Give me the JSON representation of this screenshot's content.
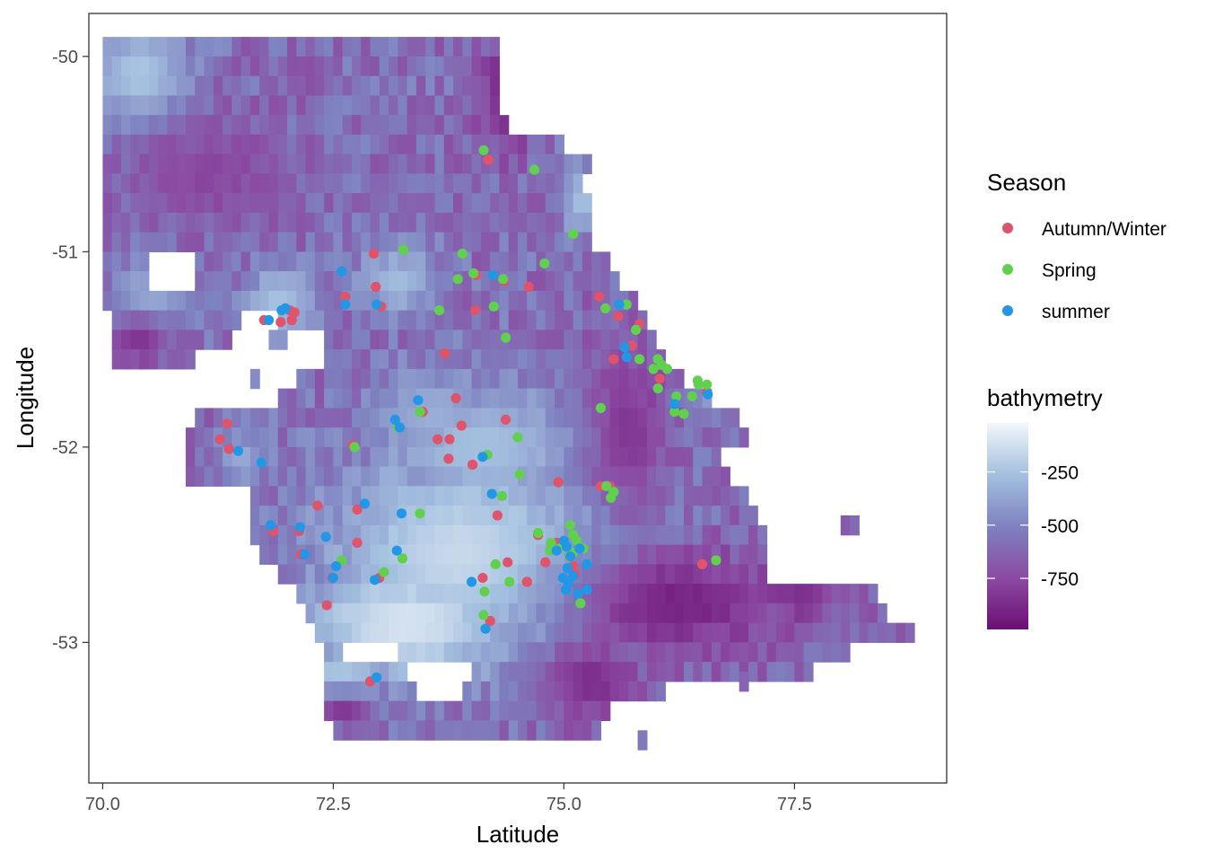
{
  "chart_data": {
    "type": "heatmap",
    "xlabel": "Latitude",
    "ylabel": "Longitude",
    "xlim": [
      69.85,
      79.15
    ],
    "ylim": [
      -53.72,
      -49.78
    ],
    "x_ticks": [
      70.0,
      72.5,
      75.0,
      77.5
    ],
    "x_tick_labels": [
      "70.0",
      "72.5",
      "75.0",
      "77.5"
    ],
    "y_ticks": [
      -50,
      -51,
      -52,
      -53
    ],
    "y_tick_labels": [
      "-50",
      "-51",
      "-52",
      "-53"
    ],
    "grid": false,
    "legend_placement": "right",
    "color_legend": {
      "title": "bathymetry",
      "breaks": [
        -250,
        -500,
        -750
      ],
      "break_labels": [
        "-250",
        "-500",
        "-750"
      ],
      "range": [
        -990,
        -20
      ],
      "colors_low_to_high": [
        "#6d0e74",
        "#8b4aa3",
        "#7e82c0",
        "#a4c0df",
        "#f2f6fa"
      ]
    },
    "season_legend": {
      "title": "Season",
      "entries": [
        {
          "label": "Autumn/Winter",
          "color": "#df536b"
        },
        {
          "label": "Spring",
          "color": "#61d04f"
        },
        {
          "label": "summer",
          "color": "#2297e6"
        }
      ]
    },
    "heat_cell_size": [
      0.1,
      0.093
    ],
    "heat_region_rows": [
      {
        "y": -49.95,
        "x0": 70.05,
        "x1": 74.25
      },
      {
        "y": -50.05,
        "x0": 70.05,
        "x1": 74.25
      },
      {
        "y": -50.15,
        "x0": 70.05,
        "x1": 74.25
      },
      {
        "y": -50.25,
        "x0": 70.05,
        "x1": 74.25
      },
      {
        "y": -50.35,
        "x0": 70.05,
        "x1": 74.35
      },
      {
        "y": -50.45,
        "x0": 70.05,
        "x1": 74.95
      },
      {
        "y": -50.55,
        "x0": 70.05,
        "x1": 75.25
      },
      {
        "y": -50.65,
        "x0": 70.05,
        "x1": 75.15
      },
      {
        "y": -50.75,
        "x0": 70.05,
        "x1": 75.25
      },
      {
        "y": -50.85,
        "x0": 70.05,
        "x1": 75.25
      },
      {
        "y": -50.95,
        "x0": 70.05,
        "x1": 75.25
      },
      {
        "y": -51.05,
        "x0": 70.05,
        "x1": 75.45
      },
      {
        "y": -51.15,
        "x0": 70.05,
        "x1": 75.55
      },
      {
        "y": -51.25,
        "x0": 70.05,
        "x1": 75.75
      },
      {
        "y": -51.35,
        "x0": 70.15,
        "x1": 75.85
      },
      {
        "y": -51.45,
        "x0": 70.15,
        "x1": 75.95
      },
      {
        "y": -51.55,
        "x0": 70.15,
        "x1": 76.05
      },
      {
        "y": -51.65,
        "x0": 71.05,
        "x1": 76.25
      },
      {
        "y": -51.75,
        "x0": 71.05,
        "x1": 76.55
      },
      {
        "y": -51.85,
        "x0": 71.05,
        "x1": 76.85
      },
      {
        "y": -51.95,
        "x0": 70.95,
        "x1": 76.95
      },
      {
        "y": -52.05,
        "x0": 70.95,
        "x1": 76.65
      },
      {
        "y": -52.15,
        "x0": 70.95,
        "x1": 76.75
      },
      {
        "y": -52.25,
        "x0": 71.65,
        "x1": 76.95
      },
      {
        "y": -52.35,
        "x0": 71.65,
        "x1": 77.05
      },
      {
        "y": -52.45,
        "x0": 71.65,
        "x1": 77.15
      },
      {
        "y": -52.55,
        "x0": 71.75,
        "x1": 77.15
      },
      {
        "y": -52.65,
        "x0": 71.95,
        "x1": 77.15
      },
      {
        "y": -52.75,
        "x0": 72.15,
        "x1": 78.35
      },
      {
        "y": -52.85,
        "x0": 72.25,
        "x1": 78.45
      },
      {
        "y": -52.95,
        "x0": 72.35,
        "x1": 78.75
      },
      {
        "y": -53.05,
        "x0": 72.45,
        "x1": 78.05
      },
      {
        "y": -53.15,
        "x0": 72.45,
        "x1": 77.65
      },
      {
        "y": -53.25,
        "x0": 72.45,
        "x1": 76.05
      },
      {
        "y": -53.35,
        "x0": 72.45,
        "x1": 75.45
      },
      {
        "y": -53.45,
        "x0": 72.55,
        "x1": 75.35
      }
    ],
    "heat_empty_cells": [
      {
        "x0": 70.55,
        "x1": 70.95,
        "y": -51.05
      },
      {
        "x0": 70.55,
        "x1": 70.95,
        "y": -51.15
      },
      {
        "x0": 71.55,
        "x1": 71.85,
        "y": -51.35
      },
      {
        "x0": 71.45,
        "x1": 71.75,
        "y": -51.45
      },
      {
        "x0": 72.05,
        "x1": 72.35,
        "y": -51.45
      },
      {
        "x0": 71.05,
        "x1": 71.95,
        "y": -51.55
      },
      {
        "x0": 72.05,
        "x1": 72.35,
        "y": -51.55
      },
      {
        "x0": 71.05,
        "x1": 71.55,
        "y": -51.65
      },
      {
        "x0": 71.75,
        "x1": 72.05,
        "y": -51.65
      },
      {
        "x0": 71.05,
        "x1": 71.85,
        "y": -51.75
      },
      {
        "x0": 71.05,
        "x1": 71.35,
        "y": -52.25
      },
      {
        "x0": 72.65,
        "x1": 73.15,
        "y": -53.05
      },
      {
        "x0": 73.35,
        "x1": 73.95,
        "y": -53.15
      },
      {
        "x0": 73.45,
        "x1": 73.85,
        "y": -53.25
      }
    ],
    "heat_isolated_cells": [
      {
        "x": 75.85,
        "y": -53.5
      },
      {
        "x": 78.05,
        "y": -52.4
      },
      {
        "x": 78.15,
        "y": -52.4
      },
      {
        "x": 76.95,
        "y": -53.2
      }
    ],
    "shallow_zones": [
      {
        "cx": 73.9,
        "cy": -52.55,
        "rx": 1.7,
        "ry": 0.6,
        "value": -150
      },
      {
        "cx": 73.3,
        "cy": -52.9,
        "rx": 1.4,
        "ry": 0.35,
        "value": -100
      },
      {
        "cx": 72.6,
        "cy": -53.2,
        "rx": 0.5,
        "ry": 0.25,
        "value": -200
      },
      {
        "cx": 74.1,
        "cy": -52.0,
        "rx": 1.3,
        "ry": 0.35,
        "value": -260
      },
      {
        "cx": 73.6,
        "cy": -51.85,
        "rx": 0.8,
        "ry": 0.3,
        "value": -330
      },
      {
        "cx": 73.2,
        "cy": -51.15,
        "rx": 0.5,
        "ry": 0.2,
        "value": -280
      },
      {
        "cx": 71.9,
        "cy": -51.25,
        "rx": 0.4,
        "ry": 0.2,
        "value": -250
      },
      {
        "cx": 70.5,
        "cy": -51.25,
        "rx": 0.45,
        "ry": 0.25,
        "value": -320
      },
      {
        "cx": 70.4,
        "cy": -50.1,
        "rx": 0.6,
        "ry": 0.3,
        "value": -230
      },
      {
        "cx": 75.2,
        "cy": -50.75,
        "rx": 0.25,
        "ry": 0.2,
        "value": -260
      },
      {
        "cx": 77.9,
        "cy": -52.8,
        "rx": 0.2,
        "ry": 0.2,
        "value": -350
      },
      {
        "cx": 76.6,
        "cy": -51.75,
        "rx": 0.3,
        "ry": 0.15,
        "value": -400
      },
      {
        "cx": 71.5,
        "cy": -52.05,
        "rx": 0.3,
        "ry": 0.15,
        "value": -350
      }
    ],
    "deep_zones": [
      {
        "cx": 76.2,
        "cy": -52.8,
        "rx": 1.2,
        "ry": 0.3,
        "value": -950
      },
      {
        "cx": 74.4,
        "cy": -50.2,
        "rx": 0.35,
        "ry": 0.3,
        "value": -950
      },
      {
        "cx": 75.3,
        "cy": -53.2,
        "rx": 0.6,
        "ry": 0.25,
        "value": -900
      },
      {
        "cx": 77.6,
        "cy": -52.7,
        "rx": 0.6,
        "ry": 0.3,
        "value": -900
      },
      {
        "cx": 70.4,
        "cy": -51.45,
        "rx": 0.4,
        "ry": 0.15,
        "value": -880
      },
      {
        "cx": 72.6,
        "cy": -53.35,
        "rx": 0.4,
        "ry": 0.12,
        "value": -880
      },
      {
        "cx": 75.7,
        "cy": -51.9,
        "rx": 0.5,
        "ry": 0.5,
        "value": -850
      },
      {
        "cx": 71.1,
        "cy": -50.6,
        "rx": 1.0,
        "ry": 0.3,
        "value": -780
      }
    ],
    "series": [
      {
        "name": "Autumn/Winter",
        "color": "#df536b",
        "points": [
          [
            74.18,
            -50.53
          ],
          [
            72.94,
            -51.01
          ],
          [
            74.05,
            -51.12
          ],
          [
            74.35,
            -51.15
          ],
          [
            74.62,
            -51.18
          ],
          [
            72.96,
            -51.18
          ],
          [
            72.63,
            -51.23
          ],
          [
            73.02,
            -51.28
          ],
          [
            72.03,
            -51.3
          ],
          [
            72.08,
            -51.31
          ],
          [
            71.75,
            -51.35
          ],
          [
            71.93,
            -51.36
          ],
          [
            72.05,
            -51.35
          ],
          [
            74.04,
            -51.3
          ],
          [
            75.38,
            -51.23
          ],
          [
            75.74,
            -51.48
          ],
          [
            75.82,
            -51.37
          ],
          [
            75.54,
            -51.55
          ],
          [
            75.59,
            -51.33
          ],
          [
            73.71,
            -51.52
          ],
          [
            76.04,
            -51.65
          ],
          [
            73.83,
            -51.75
          ],
          [
            73.47,
            -51.82
          ],
          [
            71.35,
            -51.88
          ],
          [
            74.37,
            -51.86
          ],
          [
            73.89,
            -51.89
          ],
          [
            71.27,
            -51.96
          ],
          [
            72.71,
            -51.99
          ],
          [
            73.63,
            -51.96
          ],
          [
            73.76,
            -51.96
          ],
          [
            71.37,
            -52.01
          ],
          [
            73.75,
            -52.06
          ],
          [
            74.01,
            -52.09
          ],
          [
            74.94,
            -52.18
          ],
          [
            72.33,
            -52.3
          ],
          [
            74.28,
            -52.35
          ],
          [
            72.76,
            -52.32
          ],
          [
            71.85,
            -52.43
          ],
          [
            72.13,
            -52.43
          ],
          [
            72.76,
            -52.49
          ],
          [
            74.93,
            -52.49
          ],
          [
            74.72,
            -52.45
          ],
          [
            72.15,
            -52.55
          ],
          [
            72.43,
            -52.81
          ],
          [
            72.49,
            -52.67
          ],
          [
            74.39,
            -52.59
          ],
          [
            73.0,
            -52.67
          ],
          [
            74.12,
            -52.67
          ],
          [
            74.6,
            -52.69
          ],
          [
            74.8,
            -52.59
          ],
          [
            75.1,
            -52.61
          ],
          [
            74.2,
            -52.89
          ],
          [
            72.9,
            -53.2
          ],
          [
            75.4,
            -52.2
          ],
          [
            76.5,
            -52.6
          ],
          [
            76.55,
            -51.72
          ],
          [
            75.5,
            -52.2
          ],
          [
            75.12,
            -52.65
          ]
        ]
      },
      {
        "name": "Spring",
        "color": "#61d04f",
        "points": [
          [
            74.13,
            -50.48
          ],
          [
            74.68,
            -50.58
          ],
          [
            75.1,
            -50.91
          ],
          [
            73.26,
            -50.99
          ],
          [
            73.9,
            -51.01
          ],
          [
            74.79,
            -51.06
          ],
          [
            74.02,
            -51.11
          ],
          [
            74.34,
            -51.14
          ],
          [
            73.85,
            -51.14
          ],
          [
            75.45,
            -51.29
          ],
          [
            75.68,
            -51.27
          ],
          [
            74.24,
            -51.28
          ],
          [
            73.65,
            -51.3
          ],
          [
            75.78,
            -51.4
          ],
          [
            75.82,
            -51.55
          ],
          [
            75.97,
            -51.6
          ],
          [
            76.02,
            -51.55
          ],
          [
            76.06,
            -51.58
          ],
          [
            76.12,
            -51.6
          ],
          [
            76.46,
            -51.68
          ],
          [
            76.45,
            -51.66
          ],
          [
            76.02,
            -51.7
          ],
          [
            76.22,
            -51.74
          ],
          [
            76.55,
            -51.68
          ],
          [
            76.2,
            -51.82
          ],
          [
            76.3,
            -51.83
          ],
          [
            76.39,
            -51.74
          ],
          [
            75.4,
            -51.8
          ],
          [
            74.37,
            -51.44
          ],
          [
            73.44,
            -51.82
          ],
          [
            73.2,
            -51.9
          ],
          [
            74.5,
            -51.95
          ],
          [
            72.73,
            -52.0
          ],
          [
            74.17,
            -52.04
          ],
          [
            74.52,
            -52.14
          ],
          [
            75.46,
            -52.2
          ],
          [
            74.33,
            -52.25
          ],
          [
            75.54,
            -52.23
          ],
          [
            75.51,
            -52.26
          ],
          [
            73.44,
            -52.34
          ],
          [
            74.72,
            -52.44
          ],
          [
            74.86,
            -52.49
          ],
          [
            74.85,
            -52.53
          ],
          [
            75.1,
            -52.45
          ],
          [
            75.07,
            -52.4
          ],
          [
            75.14,
            -52.48
          ],
          [
            75.21,
            -52.52
          ],
          [
            75.06,
            -52.56
          ],
          [
            72.59,
            -52.58
          ],
          [
            73.25,
            -52.57
          ],
          [
            74.26,
            -52.6
          ],
          [
            73.05,
            -52.64
          ],
          [
            74.41,
            -52.69
          ],
          [
            74.14,
            -52.74
          ],
          [
            75.18,
            -52.8
          ],
          [
            74.13,
            -52.86
          ],
          [
            76.65,
            -52.58
          ],
          [
            74.95,
            -52.52
          ],
          [
            75.1,
            -52.54
          ]
        ]
      },
      {
        "name": "summer",
        "color": "#2297e6",
        "points": [
          [
            72.59,
            -51.1
          ],
          [
            74.23,
            -51.12
          ],
          [
            72.63,
            -51.27
          ],
          [
            72.97,
            -51.27
          ],
          [
            71.98,
            -51.29
          ],
          [
            71.94,
            -51.3
          ],
          [
            71.8,
            -51.35
          ],
          [
            75.6,
            -51.27
          ],
          [
            75.66,
            -51.49
          ],
          [
            75.68,
            -51.54
          ],
          [
            76.56,
            -51.73
          ],
          [
            76.2,
            -51.78
          ],
          [
            73.42,
            -51.76
          ],
          [
            73.17,
            -51.86
          ],
          [
            73.22,
            -51.9
          ],
          [
            71.47,
            -52.02
          ],
          [
            71.72,
            -52.08
          ],
          [
            74.12,
            -52.05
          ],
          [
            74.22,
            -52.24
          ],
          [
            72.84,
            -52.29
          ],
          [
            73.24,
            -52.34
          ],
          [
            71.82,
            -52.4
          ],
          [
            72.14,
            -52.41
          ],
          [
            72.42,
            -52.46
          ],
          [
            73.19,
            -52.53
          ],
          [
            72.19,
            -52.55
          ],
          [
            72.53,
            -52.61
          ],
          [
            72.5,
            -52.67
          ],
          [
            72.95,
            -52.68
          ],
          [
            74.0,
            -52.69
          ],
          [
            74.92,
            -52.53
          ],
          [
            75.0,
            -52.48
          ],
          [
            75.03,
            -52.51
          ],
          [
            75.07,
            -52.56
          ],
          [
            75.17,
            -52.52
          ],
          [
            75.04,
            -52.62
          ],
          [
            75.05,
            -52.7
          ],
          [
            75.02,
            -52.73
          ],
          [
            75.25,
            -52.6
          ],
          [
            75.25,
            -52.73
          ],
          [
            75.15,
            -52.75
          ],
          [
            74.15,
            -52.93
          ],
          [
            72.97,
            -53.18
          ],
          [
            74.99,
            -52.67
          ],
          [
            75.1,
            -52.66
          ]
        ]
      }
    ]
  }
}
